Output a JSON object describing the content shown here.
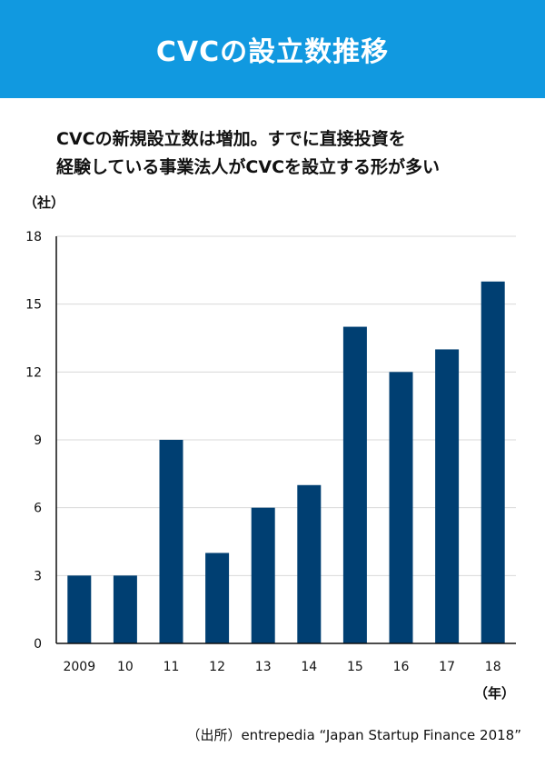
{
  "header": {
    "title": "CVCの設立数推移"
  },
  "subtitle": {
    "line1": "CVCの新規設立数は増加。すでに直接投資を",
    "line2": "経験している事業法人がCVCを設立する形が多い"
  },
  "colors": {
    "banner": "#1199e0",
    "bar": "#003f72",
    "grid": "#d8d8d8"
  },
  "chart_data": {
    "type": "bar",
    "categories": [
      "2009",
      "10",
      "11",
      "12",
      "13",
      "14",
      "15",
      "16",
      "17",
      "18"
    ],
    "values": [
      3,
      3,
      9,
      4,
      6,
      7,
      14,
      12,
      13,
      16
    ],
    "ylim": [
      0,
      18
    ],
    "yticks": [
      0,
      3,
      6,
      9,
      12,
      15,
      18
    ],
    "ylabel": "（社）",
    "xlabel": "（年）",
    "grid": true
  },
  "source": "（出所）entrepedia “Japan Startup Finance 2018”"
}
